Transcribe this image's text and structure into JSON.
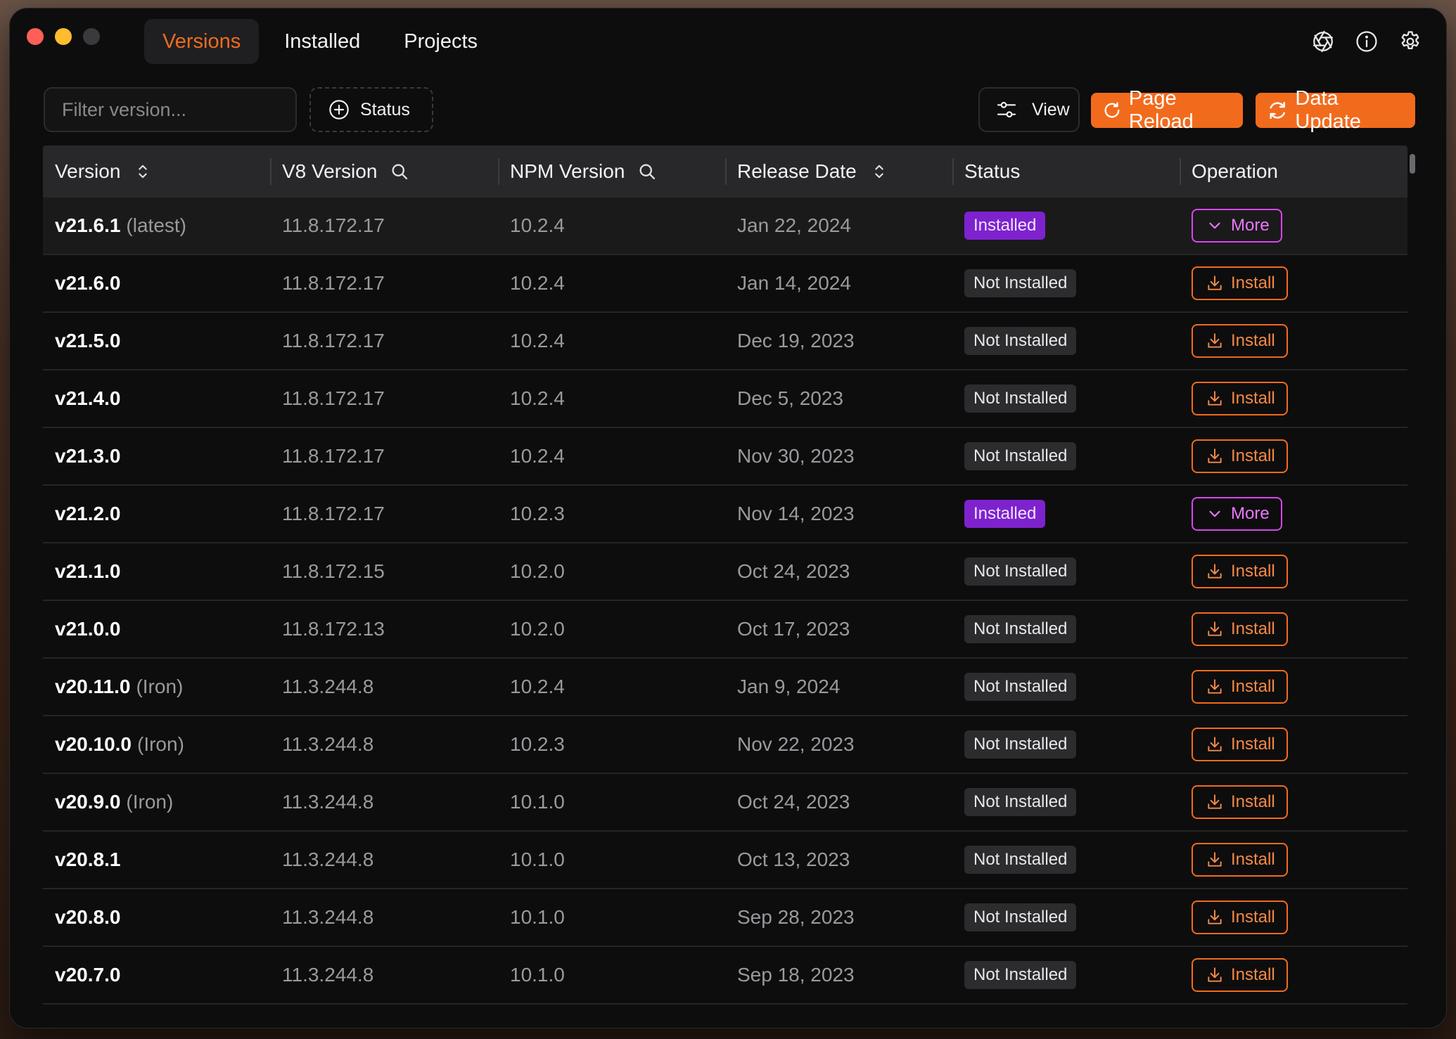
{
  "tabs": [
    {
      "label": "Versions",
      "active": true
    },
    {
      "label": "Installed",
      "active": false
    },
    {
      "label": "Projects",
      "active": false
    }
  ],
  "top_icons": [
    "aperture-icon",
    "info-icon",
    "gear-icon"
  ],
  "toolbar": {
    "filter_placeholder": "Filter version...",
    "status_label": "Status",
    "view_label": "View",
    "reload_label": "Page Reload",
    "update_label": "Data Update"
  },
  "table": {
    "headers": [
      "Version",
      "V8 Version",
      "NPM Version",
      "Release Date",
      "Status",
      "Operation"
    ],
    "rows": [
      {
        "version": "v21.6.1",
        "tag": "(latest)",
        "v8": "11.8.172.17",
        "npm": "10.2.4",
        "date": "Jan 22, 2024",
        "status": "Installed",
        "op": "More"
      },
      {
        "version": "v21.6.0",
        "tag": "",
        "v8": "11.8.172.17",
        "npm": "10.2.4",
        "date": "Jan 14, 2024",
        "status": "Not Installed",
        "op": "Install"
      },
      {
        "version": "v21.5.0",
        "tag": "",
        "v8": "11.8.172.17",
        "npm": "10.2.4",
        "date": "Dec 19, 2023",
        "status": "Not Installed",
        "op": "Install"
      },
      {
        "version": "v21.4.0",
        "tag": "",
        "v8": "11.8.172.17",
        "npm": "10.2.4",
        "date": "Dec 5, 2023",
        "status": "Not Installed",
        "op": "Install"
      },
      {
        "version": "v21.3.0",
        "tag": "",
        "v8": "11.8.172.17",
        "npm": "10.2.4",
        "date": "Nov 30, 2023",
        "status": "Not Installed",
        "op": "Install"
      },
      {
        "version": "v21.2.0",
        "tag": "",
        "v8": "11.8.172.17",
        "npm": "10.2.3",
        "date": "Nov 14, 2023",
        "status": "Installed",
        "op": "More"
      },
      {
        "version": "v21.1.0",
        "tag": "",
        "v8": "11.8.172.15",
        "npm": "10.2.0",
        "date": "Oct 24, 2023",
        "status": "Not Installed",
        "op": "Install"
      },
      {
        "version": "v21.0.0",
        "tag": "",
        "v8": "11.8.172.13",
        "npm": "10.2.0",
        "date": "Oct 17, 2023",
        "status": "Not Installed",
        "op": "Install"
      },
      {
        "version": "v20.11.0",
        "tag": "(Iron)",
        "v8": "11.3.244.8",
        "npm": "10.2.4",
        "date": "Jan 9, 2024",
        "status": "Not Installed",
        "op": "Install"
      },
      {
        "version": "v20.10.0",
        "tag": "(Iron)",
        "v8": "11.3.244.8",
        "npm": "10.2.3",
        "date": "Nov 22, 2023",
        "status": "Not Installed",
        "op": "Install"
      },
      {
        "version": "v20.9.0",
        "tag": "(Iron)",
        "v8": "11.3.244.8",
        "npm": "10.1.0",
        "date": "Oct 24, 2023",
        "status": "Not Installed",
        "op": "Install"
      },
      {
        "version": "v20.8.1",
        "tag": "",
        "v8": "11.3.244.8",
        "npm": "10.1.0",
        "date": "Oct 13, 2023",
        "status": "Not Installed",
        "op": "Install"
      },
      {
        "version": "v20.8.0",
        "tag": "",
        "v8": "11.3.244.8",
        "npm": "10.1.0",
        "date": "Sep 28, 2023",
        "status": "Not Installed",
        "op": "Install"
      },
      {
        "version": "v20.7.0",
        "tag": "",
        "v8": "11.3.244.8",
        "npm": "10.1.0",
        "date": "Sep 18, 2023",
        "status": "Not Installed",
        "op": "Install"
      }
    ]
  },
  "colors": {
    "accent": "#f26b1d",
    "installed_badge": "#7e22ce",
    "more_button": "#d946ef",
    "window_bg": "#0d0d0e"
  }
}
